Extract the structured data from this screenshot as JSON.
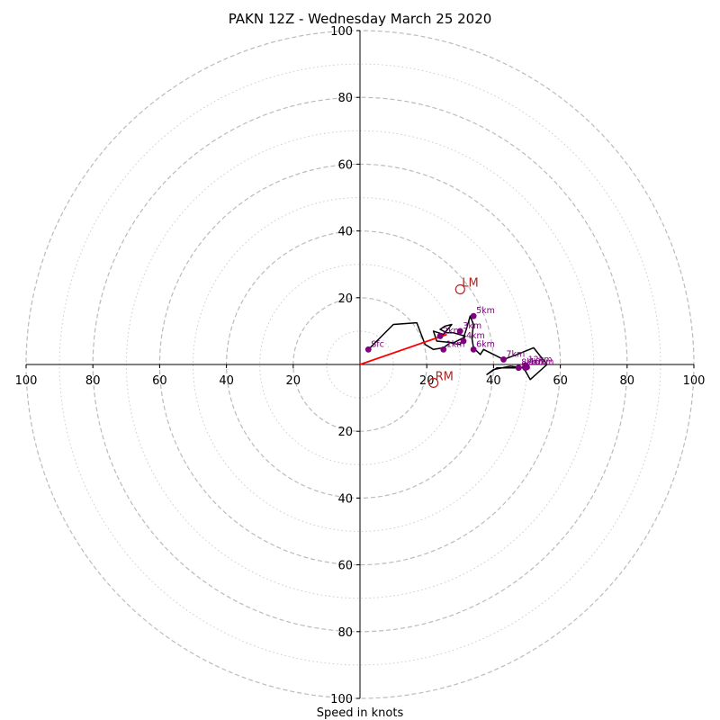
{
  "chart_data": {
    "type": "hodograph",
    "title": "PAKN 12Z - Wednesday March 25 2020",
    "xlabel": "Speed in knots",
    "ylabel": "",
    "range": [
      -100,
      100
    ],
    "rings_major": [
      20,
      40,
      60,
      80,
      100
    ],
    "rings_minor": [
      10,
      30,
      50,
      70,
      90
    ],
    "tick_labels": {
      "x_left": [
        "100",
        "80",
        "60",
        "40",
        "20"
      ],
      "x_right": [
        "20",
        "40",
        "60",
        "80",
        "100"
      ],
      "y_up": [
        "20",
        "40",
        "60",
        "80",
        "100"
      ],
      "y_down": [
        "20",
        "40",
        "60",
        "80",
        "100"
      ]
    },
    "grid": true,
    "colors": {
      "trace": "#000000",
      "height_markers": "#800080",
      "motion_markers": "#b22222",
      "shear_vector": "#ff0000",
      "ring_major": "#bbbbbb",
      "ring_minor": "#cccccc"
    },
    "hodograph_trace": [
      {
        "u": 2.5,
        "v": 4.5
      },
      {
        "u": 5,
        "v": 7
      },
      {
        "u": 10,
        "v": 12
      },
      {
        "u": 17,
        "v": 12.5
      },
      {
        "u": 19.5,
        "v": 6
      },
      {
        "u": 22,
        "v": 4.5
      },
      {
        "u": 25,
        "v": 5
      },
      {
        "u": 27,
        "v": 6.5
      },
      {
        "u": 30,
        "v": 6
      },
      {
        "u": 31.5,
        "v": 8.5
      },
      {
        "u": 28,
        "v": 9.5
      },
      {
        "u": 26,
        "v": 9.5
      },
      {
        "u": 24,
        "v": 10.5
      },
      {
        "u": 25.5,
        "v": 11.5
      },
      {
        "u": 27.5,
        "v": 12
      },
      {
        "u": 25,
        "v": 9
      },
      {
        "u": 22,
        "v": 10
      },
      {
        "u": 23,
        "v": 7
      },
      {
        "u": 28,
        "v": 6.5
      },
      {
        "u": 31,
        "v": 8
      },
      {
        "u": 32,
        "v": 11
      },
      {
        "u": 33,
        "v": 14.5
      },
      {
        "u": 34,
        "v": 12
      },
      {
        "u": 33.5,
        "v": 8
      },
      {
        "u": 34,
        "v": 5
      },
      {
        "u": 36,
        "v": 3
      },
      {
        "u": 37,
        "v": 4.5
      },
      {
        "u": 41,
        "v": 2.5
      },
      {
        "u": 43,
        "v": 1.5
      },
      {
        "u": 47,
        "v": 3
      },
      {
        "u": 52,
        "v": 5
      },
      {
        "u": 56,
        "v": 0
      },
      {
        "u": 51,
        "v": -4.5
      },
      {
        "u": 49,
        "v": -1
      },
      {
        "u": 45,
        "v": -0.5
      },
      {
        "u": 40,
        "v": -1.5
      },
      {
        "u": 38,
        "v": -3
      },
      {
        "u": 41,
        "v": -1
      },
      {
        "u": 48,
        "v": -1
      },
      {
        "u": 49.5,
        "v": -0.5
      }
    ],
    "height_markers": [
      {
        "label": "Sfc",
        "u": 2.5,
        "v": 4.5
      },
      {
        "label": "1km",
        "u": 25,
        "v": 4.5
      },
      {
        "label": "2km",
        "u": 24,
        "v": 8.5
      },
      {
        "label": "3km",
        "u": 30,
        "v": 10
      },
      {
        "label": "4km",
        "u": 31,
        "v": 7
      },
      {
        "label": "5km",
        "u": 34,
        "v": 14.5
      },
      {
        "label": "6km",
        "u": 34,
        "v": 4.5
      },
      {
        "label": "7km",
        "u": 43,
        "v": 1.5
      },
      {
        "label": "8km",
        "u": 47.5,
        "v": -1
      },
      {
        "label": "9km",
        "u": 49.5,
        "v": -1
      },
      {
        "label": "10km",
        "u": 50,
        "v": -0.8
      },
      {
        "label": "12km",
        "u": 49.5,
        "v": -0.2
      }
    ],
    "motion_markers": [
      {
        "label": "LM",
        "u": 30,
        "v": 22.5
      },
      {
        "label": "RM",
        "u": 22,
        "v": -5.5
      }
    ],
    "shear_vector": {
      "from": {
        "u": 0,
        "v": 0
      },
      "to": {
        "u": 26,
        "v": 9
      }
    }
  }
}
